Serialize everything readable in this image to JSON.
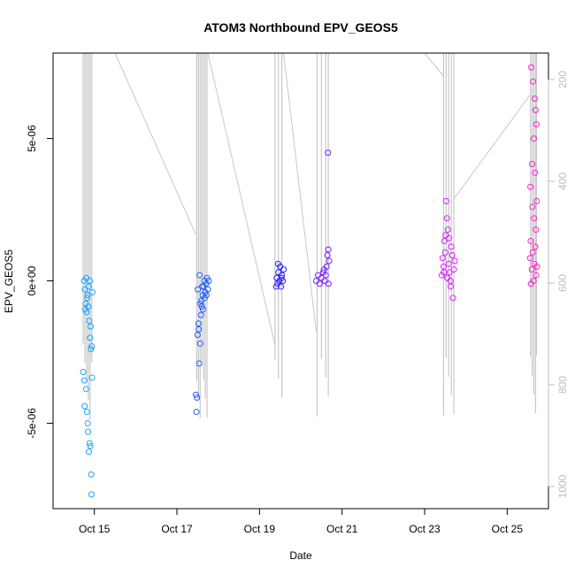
{
  "chart_data": {
    "type": "scatter",
    "title": "ATOM3 Northbound EPV_GEOS5",
    "xlabel": "Date",
    "ylabel": "EPV_GEOS5",
    "xlim": [
      "2016-10-14",
      "2016-10-26"
    ],
    "ylim": [
      -8e-06,
      8e-06
    ],
    "x_ticks": [
      {
        "date": "2016-10-15",
        "label": "Oct 15"
      },
      {
        "date": "2016-10-17",
        "label": "Oct 17"
      },
      {
        "date": "2016-10-19",
        "label": "Oct 19"
      },
      {
        "date": "2016-10-21",
        "label": "Oct 21"
      },
      {
        "date": "2016-10-23",
        "label": "Oct 23"
      },
      {
        "date": "2016-10-25",
        "label": "Oct 25"
      }
    ],
    "y_ticks": [
      {
        "value": -5e-06,
        "label": "-5e-06"
      },
      {
        "value": 0,
        "label": "0e+00"
      },
      {
        "value": 5e-06,
        "label": "5e-06"
      }
    ],
    "right_axis": {
      "color": "#bdbdbd",
      "ticks": [
        200,
        400,
        600,
        800,
        1000
      ],
      "note": "pressure axis, reversed (increasing downward)"
    },
    "series": [
      {
        "color": "#1aa3ff",
        "points": [
          [
            "2016-10-14T18:00",
            0.0
          ],
          [
            "2016-10-14T18:30",
            -3e-07
          ],
          [
            "2016-10-14T19:00",
            -8e-07
          ],
          [
            "2016-10-14T19:30",
            -1.1e-06
          ],
          [
            "2016-10-14T20:00",
            -5e-07
          ],
          [
            "2016-10-14T20:30",
            -9e-07
          ],
          [
            "2016-10-14T21:00",
            -1.4e-06
          ],
          [
            "2016-10-14T21:30",
            -2e-06
          ],
          [
            "2016-10-14T22:00",
            -2.4e-06
          ],
          [
            "2016-10-14T17:30",
            -3.2e-06
          ],
          [
            "2016-10-14T18:10",
            -3.5e-06
          ],
          [
            "2016-10-14T19:10",
            -3.8e-06
          ],
          [
            "2016-10-14T18:20",
            -4.4e-06
          ],
          [
            "2016-10-14T19:40",
            -4.6e-06
          ],
          [
            "2016-10-14T20:10",
            -5e-06
          ],
          [
            "2016-10-14T20:20",
            -5.3e-06
          ],
          [
            "2016-10-14T21:10",
            -5.7e-06
          ],
          [
            "2016-10-14T20:50",
            -6e-06
          ],
          [
            "2016-10-14T21:40",
            -5.8e-06
          ],
          [
            "2016-10-14T22:10",
            -6.8e-06
          ],
          [
            "2016-10-14T22:20",
            -7.5e-06
          ],
          [
            "2016-10-14T22:40",
            -3.4e-06
          ],
          [
            "2016-10-14T19:20",
            1e-07
          ],
          [
            "2016-10-14T21:20",
            0.0
          ],
          [
            "2016-10-14T22:50",
            -4e-07
          ],
          [
            "2016-10-14T20:40",
            -2e-07
          ],
          [
            "2016-10-14T21:50",
            -1.6e-06
          ],
          [
            "2016-10-14T22:30",
            -2.3e-06
          ],
          [
            "2016-10-14T19:50",
            -6e-07
          ],
          [
            "2016-10-14T18:40",
            -1e-06
          ]
        ]
      },
      {
        "color": "#1f5fff",
        "points": [
          [
            "2016-10-17T11:00",
            -4e-06
          ],
          [
            "2016-10-17T11:20",
            -4.6e-06
          ],
          [
            "2016-10-17T12:00",
            -1.9e-06
          ],
          [
            "2016-10-17T12:30",
            -1.5e-06
          ],
          [
            "2016-10-17T13:00",
            -2.9e-06
          ],
          [
            "2016-10-17T13:30",
            -2.2e-06
          ],
          [
            "2016-10-17T14:00",
            -1.2e-06
          ],
          [
            "2016-10-17T14:30",
            -9e-07
          ],
          [
            "2016-10-17T15:00",
            -5e-07
          ],
          [
            "2016-10-17T15:30",
            -2e-07
          ],
          [
            "2016-10-17T16:00",
            0.0
          ],
          [
            "2016-10-17T16:30",
            -4e-07
          ],
          [
            "2016-10-17T17:00",
            -1e-07
          ],
          [
            "2016-10-17T17:30",
            1e-07
          ],
          [
            "2016-10-17T18:00",
            -3e-07
          ],
          [
            "2016-10-17T13:10",
            2e-07
          ],
          [
            "2016-10-17T14:10",
            -7e-07
          ],
          [
            "2016-10-17T15:10",
            -1e-06
          ],
          [
            "2016-10-17T16:10",
            -6e-07
          ],
          [
            "2016-10-17T12:10",
            -3e-07
          ],
          [
            "2016-10-17T17:10",
            -5e-07
          ],
          [
            "2016-10-17T18:30",
            0.0
          ],
          [
            "2016-10-17T13:40",
            -8e-07
          ],
          [
            "2016-10-17T14:40",
            -2e-07
          ],
          [
            "2016-10-17T11:40",
            -4.1e-06
          ],
          [
            "2016-10-17T12:40",
            -1.7e-06
          ]
        ]
      },
      {
        "color": "#2a1fff",
        "points": [
          [
            "2016-10-19T10:00",
            1e-07
          ],
          [
            "2016-10-19T10:30",
            -1e-07
          ],
          [
            "2016-10-19T11:00",
            3e-07
          ],
          [
            "2016-10-19T11:30",
            0.0
          ],
          [
            "2016-10-19T12:00",
            5e-07
          ],
          [
            "2016-10-19T12:30",
            -2e-07
          ],
          [
            "2016-10-19T13:00",
            2e-07
          ],
          [
            "2016-10-19T13:30",
            0.0
          ],
          [
            "2016-10-19T14:00",
            4e-07
          ],
          [
            "2016-10-19T09:40",
            -2e-07
          ],
          [
            "2016-10-19T10:50",
            6e-07
          ],
          [
            "2016-10-19T12:50",
            1e-07
          ]
        ]
      },
      {
        "color": "#7a1fff",
        "points": [
          [
            "2016-10-20T09:00",
            0.0
          ],
          [
            "2016-10-20T10:00",
            2e-07
          ],
          [
            "2016-10-20T11:00",
            -1e-07
          ],
          [
            "2016-10-20T12:00",
            1e-07
          ],
          [
            "2016-10-20T13:00",
            3e-07
          ],
          [
            "2016-10-20T14:00",
            0.0
          ],
          [
            "2016-10-20T15:00",
            5e-07
          ],
          [
            "2016-10-20T15:30",
            9e-07
          ],
          [
            "2016-10-20T16:00",
            1.1e-06
          ],
          [
            "2016-10-20T16:30",
            7e-07
          ],
          [
            "2016-10-20T15:50",
            4.5e-06
          ],
          [
            "2016-10-20T14:30",
            2e-07
          ],
          [
            "2016-10-20T16:10",
            -1e-07
          ],
          [
            "2016-10-20T13:30",
            4e-07
          ]
        ]
      },
      {
        "color": "#d81fff",
        "points": [
          [
            "2016-10-23T10:00",
            2e-07
          ],
          [
            "2016-10-23T10:30",
            8e-07
          ],
          [
            "2016-10-23T11:00",
            5e-07
          ],
          [
            "2016-10-23T11:30",
            1.4e-06
          ],
          [
            "2016-10-23T12:00",
            1e-06
          ],
          [
            "2016-10-23T12:30",
            2.8e-06
          ],
          [
            "2016-10-23T13:00",
            2.2e-06
          ],
          [
            "2016-10-23T13:30",
            1.8e-06
          ],
          [
            "2016-10-23T14:00",
            6e-07
          ],
          [
            "2016-10-23T14:30",
            3e-07
          ],
          [
            "2016-10-23T15:00",
            0.0
          ],
          [
            "2016-10-23T15:30",
            1.2e-06
          ],
          [
            "2016-10-23T16:00",
            9e-07
          ],
          [
            "2016-10-23T16:30",
            -6e-07
          ],
          [
            "2016-10-23T17:00",
            4e-07
          ],
          [
            "2016-10-23T17:30",
            7e-07
          ],
          [
            "2016-10-23T12:10",
            1.6e-06
          ],
          [
            "2016-10-23T13:10",
            1e-07
          ],
          [
            "2016-10-23T14:10",
            1.5e-06
          ],
          [
            "2016-10-23T15:10",
            -2e-07
          ],
          [
            "2016-10-23T11:10",
            3e-07
          ]
        ]
      },
      {
        "color": "#ff1fd0",
        "points": [
          [
            "2016-10-25T14:00",
            7.5e-06
          ],
          [
            "2016-10-25T15:00",
            7e-06
          ],
          [
            "2016-10-25T16:00",
            6.4e-06
          ],
          [
            "2016-10-25T16:30",
            6e-06
          ],
          [
            "2016-10-25T17:00",
            5.5e-06
          ],
          [
            "2016-10-25T15:30",
            5e-06
          ],
          [
            "2016-10-25T14:30",
            4.1e-06
          ],
          [
            "2016-10-25T16:10",
            3.8e-06
          ],
          [
            "2016-10-25T13:30",
            3.3e-06
          ],
          [
            "2016-10-25T14:40",
            2.6e-06
          ],
          [
            "2016-10-25T15:40",
            2.2e-06
          ],
          [
            "2016-10-25T16:40",
            1.8e-06
          ],
          [
            "2016-10-25T13:40",
            1.4e-06
          ],
          [
            "2016-10-25T14:50",
            1e-06
          ],
          [
            "2016-10-25T15:50",
            6e-07
          ],
          [
            "2016-10-25T16:50",
            2e-07
          ],
          [
            "2016-10-25T13:50",
            -1e-07
          ],
          [
            "2016-10-25T15:20",
            0.0
          ],
          [
            "2016-10-25T16:20",
            1.2e-06
          ],
          [
            "2016-10-25T14:20",
            4e-07
          ],
          [
            "2016-10-25T13:20",
            8e-07
          ],
          [
            "2016-10-25T17:10",
            2.8e-06
          ],
          [
            "2016-10-25T17:20",
            5e-07
          ]
        ]
      }
    ],
    "overlay": {
      "type": "line",
      "color": "#c8c8c8",
      "note": "pressure trace plotted against right axis",
      "spikes": [
        [
          "2016-10-14T17:30"
        ],
        [
          "2016-10-14T18:30"
        ],
        [
          "2016-10-14T19:30"
        ],
        [
          "2016-10-14T20:30"
        ],
        [
          "2016-10-14T21:30"
        ],
        [
          "2016-10-14T22:30"
        ],
        [
          "2016-10-17T11:30"
        ],
        [
          "2016-10-17T12:30"
        ],
        [
          "2016-10-17T13:30"
        ],
        [
          "2016-10-17T14:30"
        ],
        [
          "2016-10-17T15:30"
        ],
        [
          "2016-10-17T16:30"
        ],
        [
          "2016-10-17T17:30"
        ],
        [
          "2016-10-19T09:00"
        ],
        [
          "2016-10-19T11:00"
        ],
        [
          "2016-10-19T13:00"
        ],
        [
          "2016-10-20T09:30"
        ],
        [
          "2016-10-20T12:00"
        ],
        [
          "2016-10-20T14:30"
        ],
        [
          "2016-10-20T16:00"
        ],
        [
          "2016-10-23T11:00"
        ],
        [
          "2016-10-23T12:30"
        ],
        [
          "2016-10-23T14:00"
        ],
        [
          "2016-10-23T15:30"
        ],
        [
          "2016-10-23T17:00"
        ],
        [
          "2016-10-25T13:30"
        ],
        [
          "2016-10-25T14:30"
        ],
        [
          "2016-10-25T15:30"
        ],
        [
          "2016-10-25T16:30"
        ],
        [
          "2016-10-25T17:00"
        ]
      ]
    }
  }
}
